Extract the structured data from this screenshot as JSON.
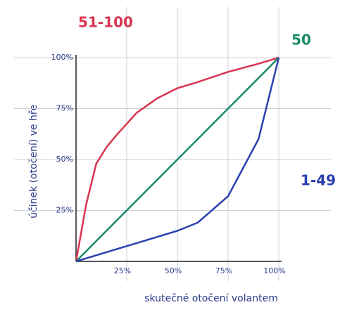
{
  "chart_data": {
    "type": "line",
    "x_label": "skutečné otočení volantem",
    "y_label": "účinek (otočení) ve hře",
    "x": [
      0,
      5,
      10,
      15,
      20,
      30,
      40,
      50,
      60,
      75,
      90,
      100
    ],
    "series": [
      {
        "name": "51-100",
        "color": "#d8344f",
        "values": [
          0,
          28,
          48,
          56,
          62,
          73,
          80,
          85,
          88,
          93,
          97,
          100
        ]
      },
      {
        "name": "50",
        "color": "#1a8a6a",
        "values": [
          0,
          5,
          10,
          15,
          20,
          30,
          40,
          50,
          60,
          75,
          90,
          100
        ]
      },
      {
        "name": "1-49",
        "color": "#2a3fb0",
        "values": [
          0,
          1.5,
          3,
          4.5,
          6,
          9,
          12,
          15,
          19,
          32,
          60,
          100
        ]
      }
    ],
    "xlim": [
      0,
      100
    ],
    "ylim": [
      0,
      100
    ],
    "xticks": [
      {
        "value": 25,
        "label": "25%"
      },
      {
        "value": 50,
        "label": "50%"
      },
      {
        "value": 75,
        "label": "75%"
      },
      {
        "value": 100,
        "label": "100%"
      }
    ],
    "yticks": [
      {
        "value": 25,
        "label": "25%"
      },
      {
        "value": 50,
        "label": "50%"
      },
      {
        "value": 75,
        "label": "75%"
      },
      {
        "value": 100,
        "label": "100%"
      }
    ],
    "grid": true
  }
}
